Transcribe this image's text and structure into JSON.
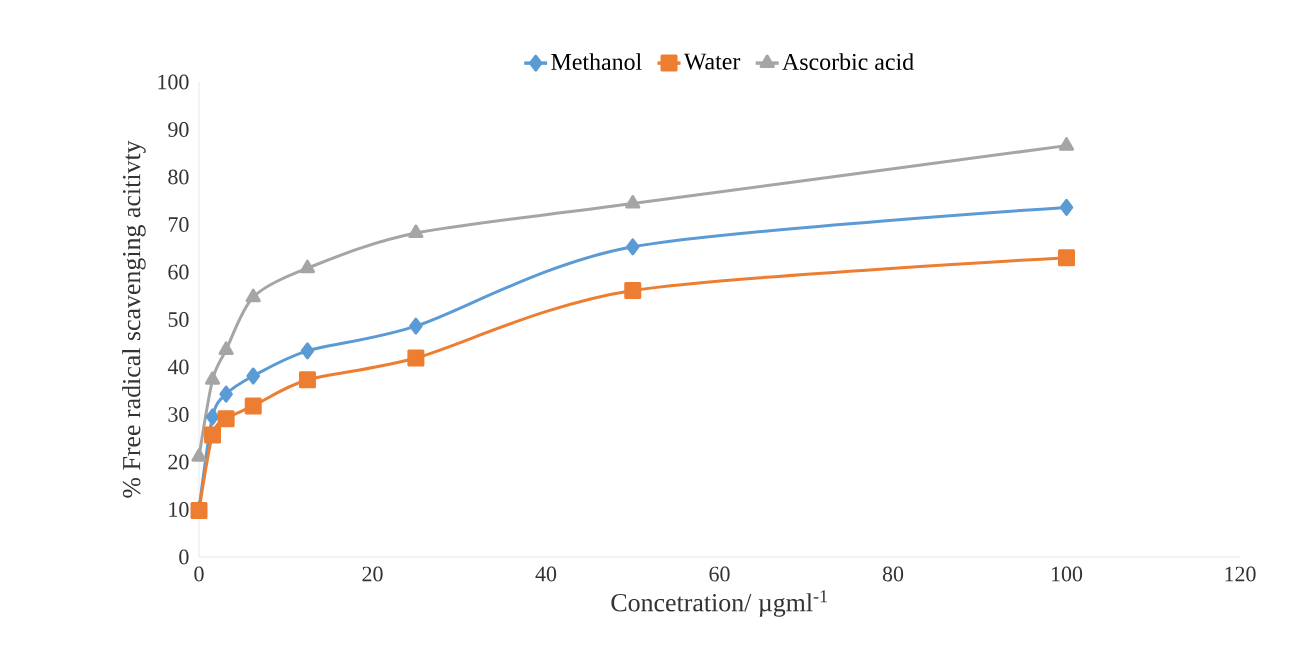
{
  "chart_data": {
    "type": "line",
    "xlabel": "Concetration/ µgml$^{-1}$",
    "ylabel": "% Free radical scavenging acitivty",
    "x": [
      0,
      1.56,
      3.125,
      6.25,
      12.5,
      25,
      50,
      100
    ],
    "series": [
      {
        "name": "Methanol",
        "color": "#5b9bd5",
        "marker": "diamond",
        "values": [
          10,
          29.5,
          34.3,
          38.1,
          43.4,
          48.6,
          65.3,
          73.6
        ]
      },
      {
        "name": "Water",
        "color": "#ed7d31",
        "marker": "square",
        "values": [
          9.8,
          25.7,
          29.1,
          31.8,
          37.3,
          41.9,
          56.1,
          63
        ]
      },
      {
        "name": "Ascorbic acid",
        "color": "#a5a5a5",
        "marker": "triangle",
        "values": [
          21.1,
          37.3,
          43.6,
          54.7,
          60.8,
          68.2,
          74.4,
          86.6
        ]
      }
    ],
    "xlim": [
      0,
      120
    ],
    "xticks": [
      0,
      20,
      40,
      60,
      80,
      100,
      120
    ],
    "ylim": [
      0,
      100
    ],
    "yticks": [
      0,
      10,
      20,
      30,
      40,
      50,
      60,
      70,
      80,
      90,
      100
    ],
    "grid": false,
    "legend": "top",
    "line_style": "solid"
  }
}
